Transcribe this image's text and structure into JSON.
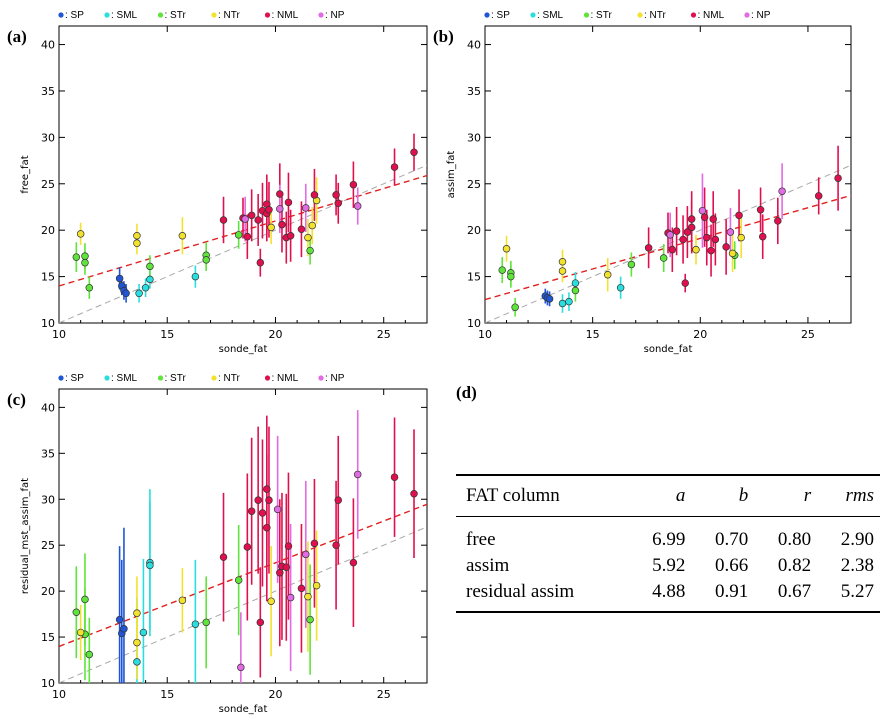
{
  "colors": {
    "SP": "#1f55d6",
    "SML": "#29dede",
    "STr": "#5ee43a",
    "NTr": "#f2e22d",
    "NML": "#e0104f",
    "NP": "#e26ae2",
    "fit_line": "#e0201e",
    "one_to_one": "#a8a8a8"
  },
  "chart_data": [
    {
      "panel": "(a)",
      "type": "scatter",
      "xlabel": "sonde_fat",
      "ylabel": "free_fat",
      "xlim": [
        10,
        27
      ],
      "ylim": [
        10,
        42
      ],
      "xticks": [
        10,
        15,
        20,
        25
      ],
      "yticks": [
        10,
        15,
        20,
        25,
        30,
        35,
        40
      ],
      "fit": {
        "a": 6.99,
        "b": 0.7
      },
      "one_to_one": true,
      "legend": [
        "SP",
        "SML",
        "STr",
        "NTr",
        "NML",
        "NP"
      ],
      "legend_position": "top",
      "points": [
        {
          "x": 12.8,
          "y": 14.8,
          "e": 1.2,
          "g": "SP"
        },
        {
          "x": 12.9,
          "y": 14.0,
          "e": 1.0,
          "g": "SP"
        },
        {
          "x": 13.0,
          "y": 13.5,
          "e": 1.0,
          "g": "SP"
        },
        {
          "x": 13.1,
          "y": 13.2,
          "e": 1.0,
          "g": "SP"
        },
        {
          "x": 13.7,
          "y": 13.2,
          "e": 1.0,
          "g": "SML"
        },
        {
          "x": 14.0,
          "y": 13.8,
          "e": 1.0,
          "g": "SML"
        },
        {
          "x": 14.2,
          "y": 14.7,
          "e": 1.0,
          "g": "SML"
        },
        {
          "x": 16.3,
          "y": 15.0,
          "e": 1.2,
          "g": "SML"
        },
        {
          "x": 10.8,
          "y": 17.1,
          "e": 1.6,
          "g": "STr"
        },
        {
          "x": 11.2,
          "y": 17.2,
          "e": 1.4,
          "g": "STr"
        },
        {
          "x": 11.2,
          "y": 16.5,
          "e": 1.3,
          "g": "STr"
        },
        {
          "x": 11.4,
          "y": 13.8,
          "e": 1.2,
          "g": "STr"
        },
        {
          "x": 14.2,
          "y": 16.1,
          "e": 1.2,
          "g": "STr"
        },
        {
          "x": 16.8,
          "y": 17.3,
          "e": 1.4,
          "g": "STr"
        },
        {
          "x": 16.8,
          "y": 16.8,
          "e": 1.2,
          "g": "STr"
        },
        {
          "x": 18.3,
          "y": 19.5,
          "e": 1.5,
          "g": "STr"
        },
        {
          "x": 21.6,
          "y": 17.8,
          "e": 1.5,
          "g": "STr"
        },
        {
          "x": 11.0,
          "y": 19.6,
          "e": 1.2,
          "g": "NTr"
        },
        {
          "x": 13.6,
          "y": 19.4,
          "e": 1.3,
          "g": "NTr"
        },
        {
          "x": 13.6,
          "y": 18.6,
          "e": 1.2,
          "g": "NTr"
        },
        {
          "x": 15.7,
          "y": 19.4,
          "e": 2.0,
          "g": "NTr"
        },
        {
          "x": 19.8,
          "y": 20.3,
          "e": 1.8,
          "g": "NTr"
        },
        {
          "x": 21.5,
          "y": 19.2,
          "e": 2.0,
          "g": "NTr"
        },
        {
          "x": 21.7,
          "y": 20.5,
          "e": 2.0,
          "g": "NTr"
        },
        {
          "x": 21.9,
          "y": 23.2,
          "e": 2.5,
          "g": "NTr"
        },
        {
          "x": 17.6,
          "y": 21.1,
          "e": 2.5,
          "g": "NML"
        },
        {
          "x": 18.5,
          "y": 21.3,
          "e": 2.2,
          "g": "NML"
        },
        {
          "x": 18.7,
          "y": 19.3,
          "e": 2.4,
          "g": "NML"
        },
        {
          "x": 18.9,
          "y": 21.6,
          "e": 2.8,
          "g": "NML"
        },
        {
          "x": 19.2,
          "y": 21.1,
          "e": 2.8,
          "g": "NML"
        },
        {
          "x": 19.3,
          "y": 16.5,
          "e": 1.5,
          "g": "NML"
        },
        {
          "x": 19.4,
          "y": 22.1,
          "e": 3.0,
          "g": "NML"
        },
        {
          "x": 19.6,
          "y": 22.8,
          "e": 3.2,
          "g": "NML"
        },
        {
          "x": 19.6,
          "y": 21.8,
          "e": 3.0,
          "g": "NML"
        },
        {
          "x": 19.7,
          "y": 22.2,
          "e": 3.0,
          "g": "NML"
        },
        {
          "x": 20.2,
          "y": 23.9,
          "e": 3.3,
          "g": "NML"
        },
        {
          "x": 20.3,
          "y": 20.6,
          "e": 3.0,
          "g": "NML"
        },
        {
          "x": 20.5,
          "y": 19.2,
          "e": 2.8,
          "g": "NML"
        },
        {
          "x": 20.6,
          "y": 23.0,
          "e": 3.2,
          "g": "NML"
        },
        {
          "x": 20.7,
          "y": 19.4,
          "e": 2.8,
          "g": "NML"
        },
        {
          "x": 21.2,
          "y": 20.1,
          "e": 3.0,
          "g": "NML"
        },
        {
          "x": 21.8,
          "y": 23.8,
          "e": 2.8,
          "g": "NML"
        },
        {
          "x": 22.8,
          "y": 23.8,
          "e": 2.2,
          "g": "NML"
        },
        {
          "x": 22.9,
          "y": 22.9,
          "e": 2.2,
          "g": "NML"
        },
        {
          "x": 23.6,
          "y": 24.9,
          "e": 2.5,
          "g": "NML"
        },
        {
          "x": 25.5,
          "y": 26.8,
          "e": 2.0,
          "g": "NML"
        },
        {
          "x": 26.4,
          "y": 28.4,
          "e": 2.0,
          "g": "NML"
        },
        {
          "x": 18.6,
          "y": 21.2,
          "e": 2.4,
          "g": "NP"
        },
        {
          "x": 20.2,
          "y": 22.3,
          "e": 2.6,
          "g": "NP"
        },
        {
          "x": 21.4,
          "y": 22.4,
          "e": 2.6,
          "g": "NP"
        },
        {
          "x": 23.8,
          "y": 22.6,
          "e": 2.0,
          "g": "NP"
        }
      ]
    },
    {
      "panel": "(b)",
      "type": "scatter",
      "xlabel": "sonde_fat",
      "ylabel": "assim_fat",
      "xlim": [
        10,
        27
      ],
      "ylim": [
        10,
        42
      ],
      "xticks": [
        10,
        15,
        20,
        25
      ],
      "yticks": [
        10,
        15,
        20,
        25,
        30,
        35,
        40
      ],
      "fit": {
        "a": 5.92,
        "b": 0.66
      },
      "one_to_one": true,
      "legend": [
        "SP",
        "SML",
        "STr",
        "NTr",
        "NML",
        "NP"
      ],
      "legend_position": "top",
      "points": [
        {
          "x": 12.8,
          "y": 12.9,
          "e": 0.8,
          "g": "SP"
        },
        {
          "x": 12.9,
          "y": 12.7,
          "e": 0.8,
          "g": "SP"
        },
        {
          "x": 13.0,
          "y": 12.6,
          "e": 0.8,
          "g": "SP"
        },
        {
          "x": 13.6,
          "y": 12.1,
          "e": 1.0,
          "g": "SML"
        },
        {
          "x": 13.9,
          "y": 12.3,
          "e": 1.0,
          "g": "SML"
        },
        {
          "x": 14.2,
          "y": 14.3,
          "e": 1.2,
          "g": "SML"
        },
        {
          "x": 16.3,
          "y": 13.8,
          "e": 1.2,
          "g": "SML"
        },
        {
          "x": 10.8,
          "y": 15.7,
          "e": 1.4,
          "g": "STr"
        },
        {
          "x": 11.2,
          "y": 15.4,
          "e": 1.3,
          "g": "STr"
        },
        {
          "x": 11.2,
          "y": 15.0,
          "e": 1.2,
          "g": "STr"
        },
        {
          "x": 11.4,
          "y": 11.7,
          "e": 1.0,
          "g": "STr"
        },
        {
          "x": 14.2,
          "y": 13.5,
          "e": 1.2,
          "g": "STr"
        },
        {
          "x": 16.8,
          "y": 16.3,
          "e": 1.3,
          "g": "STr"
        },
        {
          "x": 18.3,
          "y": 17.0,
          "e": 1.5,
          "g": "STr"
        },
        {
          "x": 21.6,
          "y": 17.3,
          "e": 1.5,
          "g": "STr"
        },
        {
          "x": 11.0,
          "y": 18.0,
          "e": 1.4,
          "g": "NTr"
        },
        {
          "x": 13.6,
          "y": 16.6,
          "e": 1.3,
          "g": "NTr"
        },
        {
          "x": 13.6,
          "y": 15.6,
          "e": 1.2,
          "g": "NTr"
        },
        {
          "x": 15.7,
          "y": 15.2,
          "e": 1.8,
          "g": "NTr"
        },
        {
          "x": 19.8,
          "y": 17.9,
          "e": 1.6,
          "g": "NTr"
        },
        {
          "x": 21.5,
          "y": 17.5,
          "e": 2.0,
          "g": "NTr"
        },
        {
          "x": 21.9,
          "y": 19.2,
          "e": 2.2,
          "g": "NTr"
        },
        {
          "x": 17.6,
          "y": 18.1,
          "e": 2.2,
          "g": "NML"
        },
        {
          "x": 18.5,
          "y": 19.7,
          "e": 2.2,
          "g": "NML"
        },
        {
          "x": 18.7,
          "y": 17.9,
          "e": 2.4,
          "g": "NML"
        },
        {
          "x": 18.9,
          "y": 19.9,
          "e": 2.6,
          "g": "NML"
        },
        {
          "x": 19.2,
          "y": 19.0,
          "e": 2.6,
          "g": "NML"
        },
        {
          "x": 19.3,
          "y": 14.3,
          "e": 1.0,
          "g": "NML"
        },
        {
          "x": 19.4,
          "y": 19.8,
          "e": 2.8,
          "g": "NML"
        },
        {
          "x": 19.6,
          "y": 21.2,
          "e": 3.0,
          "g": "NML"
        },
        {
          "x": 19.6,
          "y": 20.3,
          "e": 2.8,
          "g": "NML"
        },
        {
          "x": 20.2,
          "y": 21.4,
          "e": 3.2,
          "g": "NML"
        },
        {
          "x": 20.3,
          "y": 19.2,
          "e": 3.0,
          "g": "NML"
        },
        {
          "x": 20.5,
          "y": 17.8,
          "e": 2.8,
          "g": "NML"
        },
        {
          "x": 20.6,
          "y": 21.2,
          "e": 3.0,
          "g": "NML"
        },
        {
          "x": 20.7,
          "y": 19.0,
          "e": 2.8,
          "g": "NML"
        },
        {
          "x": 21.2,
          "y": 18.2,
          "e": 3.0,
          "g": "NML"
        },
        {
          "x": 21.8,
          "y": 21.6,
          "e": 2.8,
          "g": "NML"
        },
        {
          "x": 22.8,
          "y": 22.2,
          "e": 2.4,
          "g": "NML"
        },
        {
          "x": 22.9,
          "y": 19.3,
          "e": 2.4,
          "g": "NML"
        },
        {
          "x": 23.6,
          "y": 21.0,
          "e": 2.5,
          "g": "NML"
        },
        {
          "x": 25.5,
          "y": 23.7,
          "e": 2.0,
          "g": "NML"
        },
        {
          "x": 26.4,
          "y": 25.6,
          "e": 3.5,
          "g": "NML"
        },
        {
          "x": 18.6,
          "y": 19.5,
          "e": 2.4,
          "g": "NP"
        },
        {
          "x": 20.1,
          "y": 22.1,
          "e": 4.0,
          "g": "NP"
        },
        {
          "x": 21.4,
          "y": 19.8,
          "e": 2.6,
          "g": "NP"
        },
        {
          "x": 23.8,
          "y": 24.2,
          "e": 3.0,
          "g": "NP"
        }
      ]
    },
    {
      "panel": "(c)",
      "type": "scatter",
      "xlabel": "sonde_fat",
      "ylabel": "residual_mst_assim_fat",
      "xlim": [
        10,
        27
      ],
      "ylim": [
        10,
        42
      ],
      "xticks": [
        10,
        15,
        20,
        25
      ],
      "yticks": [
        10,
        15,
        20,
        25,
        30,
        35,
        40
      ],
      "fit": {
        "a": 4.88,
        "b": 0.91
      },
      "one_to_one": true,
      "legend": [
        "SP",
        "SML",
        "STr",
        "NTr",
        "NML",
        "NP"
      ],
      "legend_position": "top",
      "points": [
        {
          "x": 12.8,
          "y": 16.9,
          "e": 8.0,
          "g": "SP"
        },
        {
          "x": 12.9,
          "y": 15.4,
          "e": 8.0,
          "g": "SP"
        },
        {
          "x": 13.0,
          "y": 15.9,
          "e": 11.0,
          "g": "SP"
        },
        {
          "x": 13.6,
          "y": 12.3,
          "e": 7.0,
          "g": "SML"
        },
        {
          "x": 13.9,
          "y": 15.5,
          "e": 8.0,
          "g": "SML"
        },
        {
          "x": 14.2,
          "y": 23.1,
          "e": 8.0,
          "g": "SML"
        },
        {
          "x": 14.2,
          "y": 22.8,
          "e": 7.0,
          "g": "SML"
        },
        {
          "x": 16.3,
          "y": 16.4,
          "e": 7.0,
          "g": "SML"
        },
        {
          "x": 10.8,
          "y": 17.7,
          "e": 5.0,
          "g": "STr"
        },
        {
          "x": 11.2,
          "y": 19.1,
          "e": 5.0,
          "g": "STr"
        },
        {
          "x": 11.2,
          "y": 15.3,
          "e": 5.0,
          "g": "STr"
        },
        {
          "x": 11.4,
          "y": 13.1,
          "e": 4.0,
          "g": "STr"
        },
        {
          "x": 16.8,
          "y": 16.6,
          "e": 5.0,
          "g": "STr"
        },
        {
          "x": 18.3,
          "y": 21.2,
          "e": 6.0,
          "g": "STr"
        },
        {
          "x": 21.6,
          "y": 16.9,
          "e": 6.0,
          "g": "STr"
        },
        {
          "x": 11.0,
          "y": 15.5,
          "e": 3.0,
          "g": "NTr"
        },
        {
          "x": 13.6,
          "y": 17.6,
          "e": 4.0,
          "g": "NTr"
        },
        {
          "x": 13.6,
          "y": 14.4,
          "e": 4.0,
          "g": "NTr"
        },
        {
          "x": 15.7,
          "y": 19.0,
          "e": 3.5,
          "g": "NTr"
        },
        {
          "x": 19.8,
          "y": 18.9,
          "e": 6.0,
          "g": "NTr"
        },
        {
          "x": 21.5,
          "y": 19.4,
          "e": 6.0,
          "g": "NTr"
        },
        {
          "x": 21.9,
          "y": 20.6,
          "e": 6.0,
          "g": "NTr"
        },
        {
          "x": 17.6,
          "y": 23.7,
          "e": 7.0,
          "g": "NML"
        },
        {
          "x": 18.7,
          "y": 24.8,
          "e": 8.0,
          "g": "NML"
        },
        {
          "x": 18.9,
          "y": 28.7,
          "e": 8.0,
          "g": "NML"
        },
        {
          "x": 19.2,
          "y": 29.9,
          "e": 8.0,
          "g": "NML"
        },
        {
          "x": 19.3,
          "y": 16.6,
          "e": 6.0,
          "g": "NML"
        },
        {
          "x": 19.4,
          "y": 28.5,
          "e": 8.0,
          "g": "NML"
        },
        {
          "x": 19.6,
          "y": 31.1,
          "e": 8.0,
          "g": "NML"
        },
        {
          "x": 19.6,
          "y": 26.9,
          "e": 8.0,
          "g": "NML"
        },
        {
          "x": 19.7,
          "y": 29.9,
          "e": 8.0,
          "g": "NML"
        },
        {
          "x": 20.2,
          "y": 22.0,
          "e": 8.0,
          "g": "NML"
        },
        {
          "x": 20.3,
          "y": 22.7,
          "e": 8.0,
          "g": "NML"
        },
        {
          "x": 20.5,
          "y": 22.6,
          "e": 8.0,
          "g": "NML"
        },
        {
          "x": 20.6,
          "y": 24.9,
          "e": 8.0,
          "g": "NML"
        },
        {
          "x": 21.2,
          "y": 20.3,
          "e": 7.0,
          "g": "NML"
        },
        {
          "x": 21.8,
          "y": 25.2,
          "e": 7.0,
          "g": "NML"
        },
        {
          "x": 22.8,
          "y": 25.0,
          "e": 7.0,
          "g": "NML"
        },
        {
          "x": 22.9,
          "y": 29.9,
          "e": 7.0,
          "g": "NML"
        },
        {
          "x": 23.6,
          "y": 23.1,
          "e": 7.0,
          "g": "NML"
        },
        {
          "x": 25.5,
          "y": 32.4,
          "e": 6.5,
          "g": "NML"
        },
        {
          "x": 26.4,
          "y": 30.6,
          "e": 7.0,
          "g": "NML"
        },
        {
          "x": 18.4,
          "y": 11.7,
          "e": 6.0,
          "g": "NP"
        },
        {
          "x": 20.1,
          "y": 28.9,
          "e": 8.0,
          "g": "NP"
        },
        {
          "x": 20.7,
          "y": 19.3,
          "e": 8.0,
          "g": "NP"
        },
        {
          "x": 21.4,
          "y": 24.0,
          "e": 8.0,
          "g": "NP"
        },
        {
          "x": 23.8,
          "y": 32.7,
          "e": 7.0,
          "g": "NP"
        }
      ]
    },
    {
      "panel": "(d)",
      "type": "table",
      "columns": [
        "FAT column",
        "a",
        "b",
        "r",
        "rms"
      ],
      "rows": [
        [
          "free",
          "6.99",
          "0.70",
          "0.80",
          "2.90"
        ],
        [
          "assim",
          "5.92",
          "0.66",
          "0.82",
          "2.38"
        ],
        [
          "residual assim",
          "4.88",
          "0.91",
          "0.67",
          "5.27"
        ]
      ]
    }
  ],
  "panel_labels": [
    "(a)",
    "(b)",
    "(c)",
    "(d)"
  ]
}
